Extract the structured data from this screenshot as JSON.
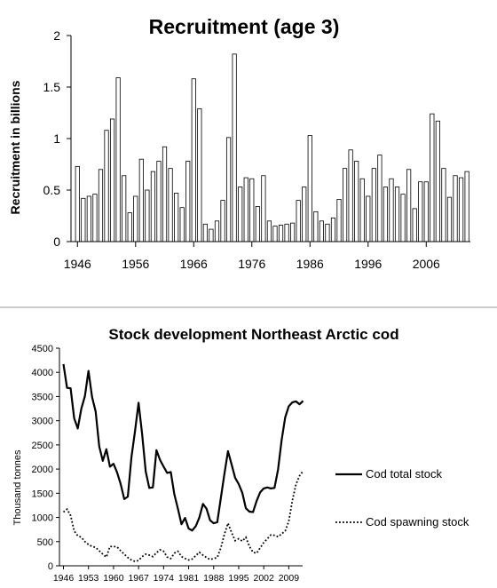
{
  "chart_data": [
    {
      "type": "bar",
      "title": "Recruitment (age 3)",
      "ylabel": "Recruitment in billions",
      "xlabel": "",
      "ylim": [
        0,
        2
      ],
      "yticks": [
        0,
        0.5,
        1,
        1.5,
        2
      ],
      "ytick_labels": [
        "0",
        "0.5",
        "1",
        "1.5",
        "2"
      ],
      "xtick_labels": [
        "1946",
        "1956",
        "1966",
        "1976",
        "1986",
        "1996",
        "2006"
      ],
      "grid": false,
      "bar_fill": "#ffffff",
      "bar_stroke": "#000000",
      "years": [
        1946,
        1947,
        1948,
        1949,
        1950,
        1951,
        1952,
        1953,
        1954,
        1955,
        1956,
        1957,
        1958,
        1959,
        1960,
        1961,
        1962,
        1963,
        1964,
        1965,
        1966,
        1967,
        1968,
        1969,
        1970,
        1971,
        1972,
        1973,
        1974,
        1975,
        1976,
        1977,
        1978,
        1979,
        1980,
        1981,
        1982,
        1983,
        1984,
        1985,
        1986,
        1987,
        1988,
        1989,
        1990,
        1991,
        1992,
        1993,
        1994,
        1995,
        1996,
        1997,
        1998,
        1999,
        2000,
        2001,
        2002,
        2003,
        2004,
        2005,
        2006,
        2007,
        2008,
        2009,
        2010,
        2011,
        2012,
        2013
      ],
      "values": [
        0.73,
        0.42,
        0.44,
        0.46,
        0.7,
        1.08,
        1.19,
        1.59,
        0.64,
        0.28,
        0.44,
        0.8,
        0.5,
        0.68,
        0.78,
        0.92,
        0.71,
        0.47,
        0.33,
        0.78,
        1.58,
        1.29,
        0.17,
        0.12,
        0.2,
        0.4,
        1.01,
        1.82,
        0.53,
        0.62,
        0.61,
        0.34,
        0.64,
        0.2,
        0.15,
        0.16,
        0.17,
        0.18,
        0.4,
        0.53,
        1.03,
        0.29,
        0.2,
        0.17,
        0.23,
        0.41,
        0.71,
        0.89,
        0.78,
        0.61,
        0.44,
        0.71,
        0.84,
        0.53,
        0.61,
        0.53,
        0.46,
        0.7,
        0.32,
        0.58,
        0.58,
        1.24,
        1.17,
        0.71,
        0.43,
        0.64,
        0.62,
        0.68
      ]
    },
    {
      "type": "line",
      "title": "Stock development Northeast Arctic cod",
      "ylabel": "Thousand tonnes",
      "xlabel": "",
      "ylim": [
        0,
        4500
      ],
      "yticks": [
        0,
        500,
        1000,
        1500,
        2000,
        2500,
        3000,
        3500,
        4000,
        4500
      ],
      "ytick_labels": [
        "0",
        "500",
        "1000",
        "1500",
        "2000",
        "2500",
        "3000",
        "3500",
        "4000",
        "4500"
      ],
      "xtick_labels": [
        "1946",
        "1953",
        "1960",
        "1967",
        "1974",
        "1981",
        "1988",
        "1995",
        "2002",
        "2009"
      ],
      "grid": false,
      "legend_position": "right",
      "x": [
        1946,
        1947,
        1948,
        1949,
        1950,
        1951,
        1952,
        1953,
        1954,
        1955,
        1956,
        1957,
        1958,
        1959,
        1960,
        1961,
        1962,
        1963,
        1964,
        1965,
        1966,
        1967,
        1968,
        1969,
        1970,
        1971,
        1972,
        1973,
        1974,
        1975,
        1976,
        1977,
        1978,
        1979,
        1980,
        1981,
        1982,
        1983,
        1984,
        1985,
        1986,
        1987,
        1988,
        1989,
        1990,
        1991,
        1992,
        1993,
        1994,
        1995,
        1996,
        1997,
        1998,
        1999,
        2000,
        2001,
        2002,
        2003,
        2004,
        2005,
        2006,
        2007,
        2008,
        2009,
        2010,
        2011,
        2012,
        2013
      ],
      "series": [
        {
          "name": "Cod total stock",
          "style": "solid",
          "color": "#000000",
          "values": [
            4170,
            3680,
            3670,
            3050,
            2840,
            3250,
            3510,
            4030,
            3490,
            3190,
            2470,
            2170,
            2410,
            2050,
            2110,
            1930,
            1690,
            1380,
            1430,
            2240,
            2780,
            3370,
            2720,
            1950,
            1610,
            1620,
            2390,
            2190,
            2050,
            1920,
            1940,
            1480,
            1180,
            860,
            990,
            770,
            730,
            820,
            1000,
            1280,
            1180,
            940,
            880,
            900,
            1400,
            1900,
            2370,
            2100,
            1820,
            1690,
            1510,
            1190,
            1120,
            1110,
            1340,
            1520,
            1600,
            1620,
            1600,
            1610,
            1990,
            2600,
            3070,
            3300,
            3380,
            3400,
            3340,
            3410
          ]
        },
        {
          "name": "Cod spawning stock",
          "style": "dotted",
          "color": "#000000",
          "values": [
            1110,
            1170,
            1040,
            720,
            620,
            590,
            500,
            440,
            400,
            380,
            310,
            240,
            180,
            400,
            400,
            390,
            310,
            240,
            170,
            120,
            90,
            110,
            190,
            240,
            220,
            190,
            270,
            330,
            300,
            180,
            150,
            260,
            300,
            190,
            150,
            120,
            140,
            210,
            280,
            220,
            170,
            130,
            150,
            170,
            370,
            650,
            880,
            690,
            520,
            560,
            510,
            590,
            400,
            280,
            260,
            370,
            480,
            560,
            640,
            630,
            600,
            660,
            720,
            920,
            1350,
            1680,
            1860,
            1960
          ]
        }
      ]
    }
  ]
}
